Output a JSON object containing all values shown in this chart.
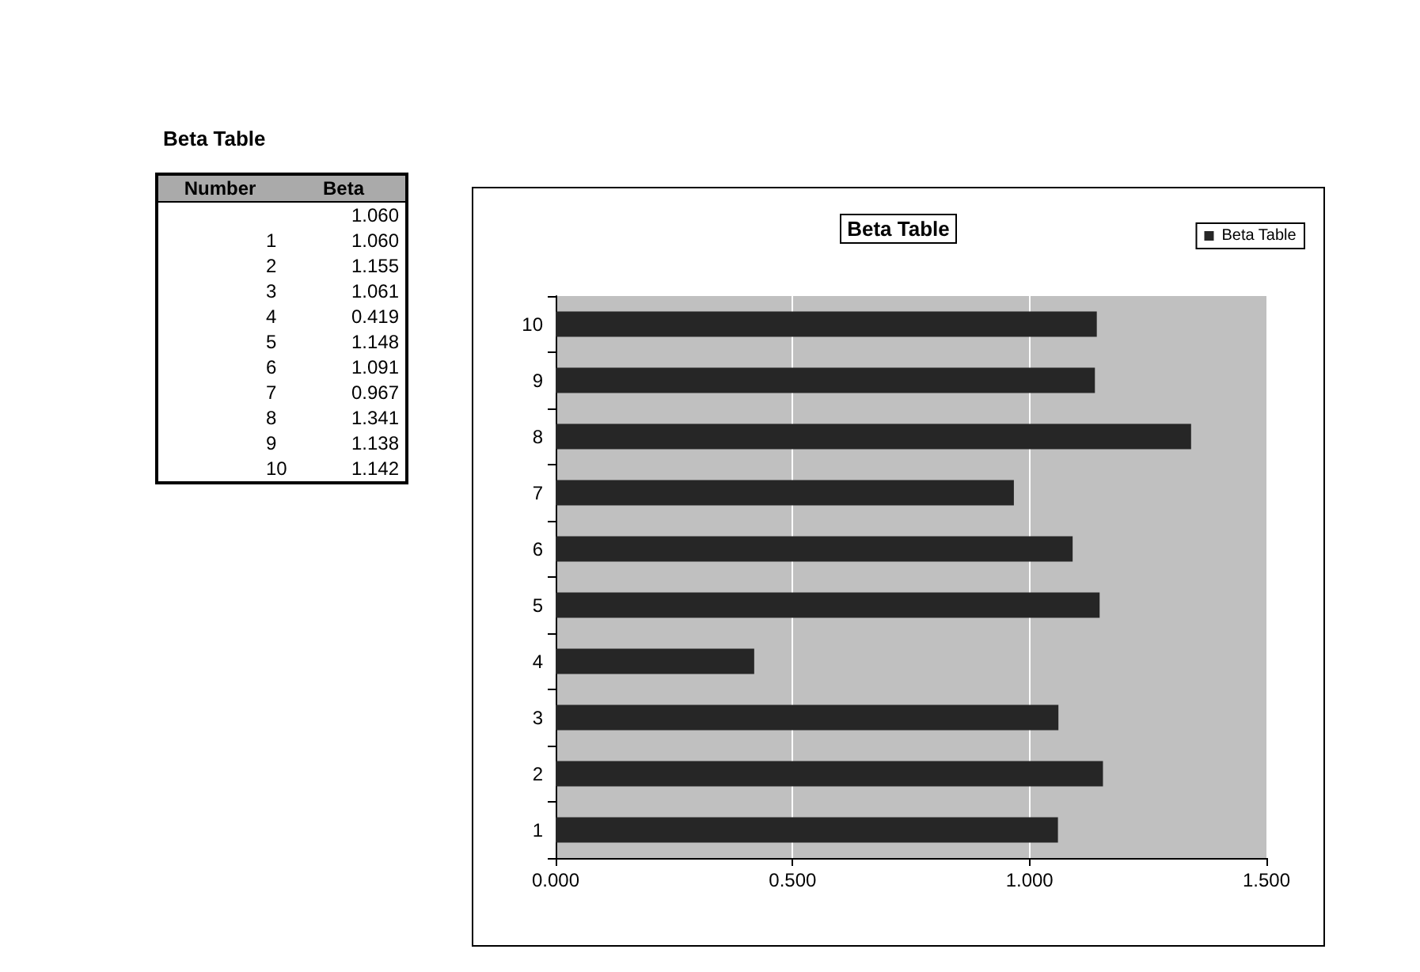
{
  "chart_data": [
    {
      "type": "other",
      "title": "Beta Table",
      "annotations": [
        "Number",
        "Beta",
        "1",
        "2",
        "3",
        "4",
        "5",
        "6",
        "7",
        "8",
        "9",
        "10",
        "1.060",
        "1.060",
        "1.155",
        "1.061",
        "0.419",
        "1.148",
        "1.091",
        "0.967",
        "1.341",
        "1.138",
        "1.142"
      ]
    },
    {
      "type": "bar",
      "orientation": "horizontal",
      "title": "Beta Table",
      "categories": [
        "10",
        "9",
        "8",
        "7",
        "6",
        "5",
        "4",
        "3",
        "2",
        "1"
      ],
      "series": [
        {
          "name": "Beta Table",
          "color": "#262626",
          "values": [
            1.142,
            1.138,
            1.341,
            0.967,
            1.091,
            1.148,
            0.419,
            1.061,
            1.155,
            1.06
          ]
        }
      ],
      "xlim": [
        0,
        1.5
      ],
      "xticks": [
        {
          "value": 0,
          "label": "0.000"
        },
        {
          "value": 0.5,
          "label": "0.500"
        },
        {
          "value": 1,
          "label": "1.000"
        },
        {
          "value": 1.5,
          "label": "1.500"
        }
      ],
      "grid": "x",
      "legend": "top right"
    }
  ]
}
